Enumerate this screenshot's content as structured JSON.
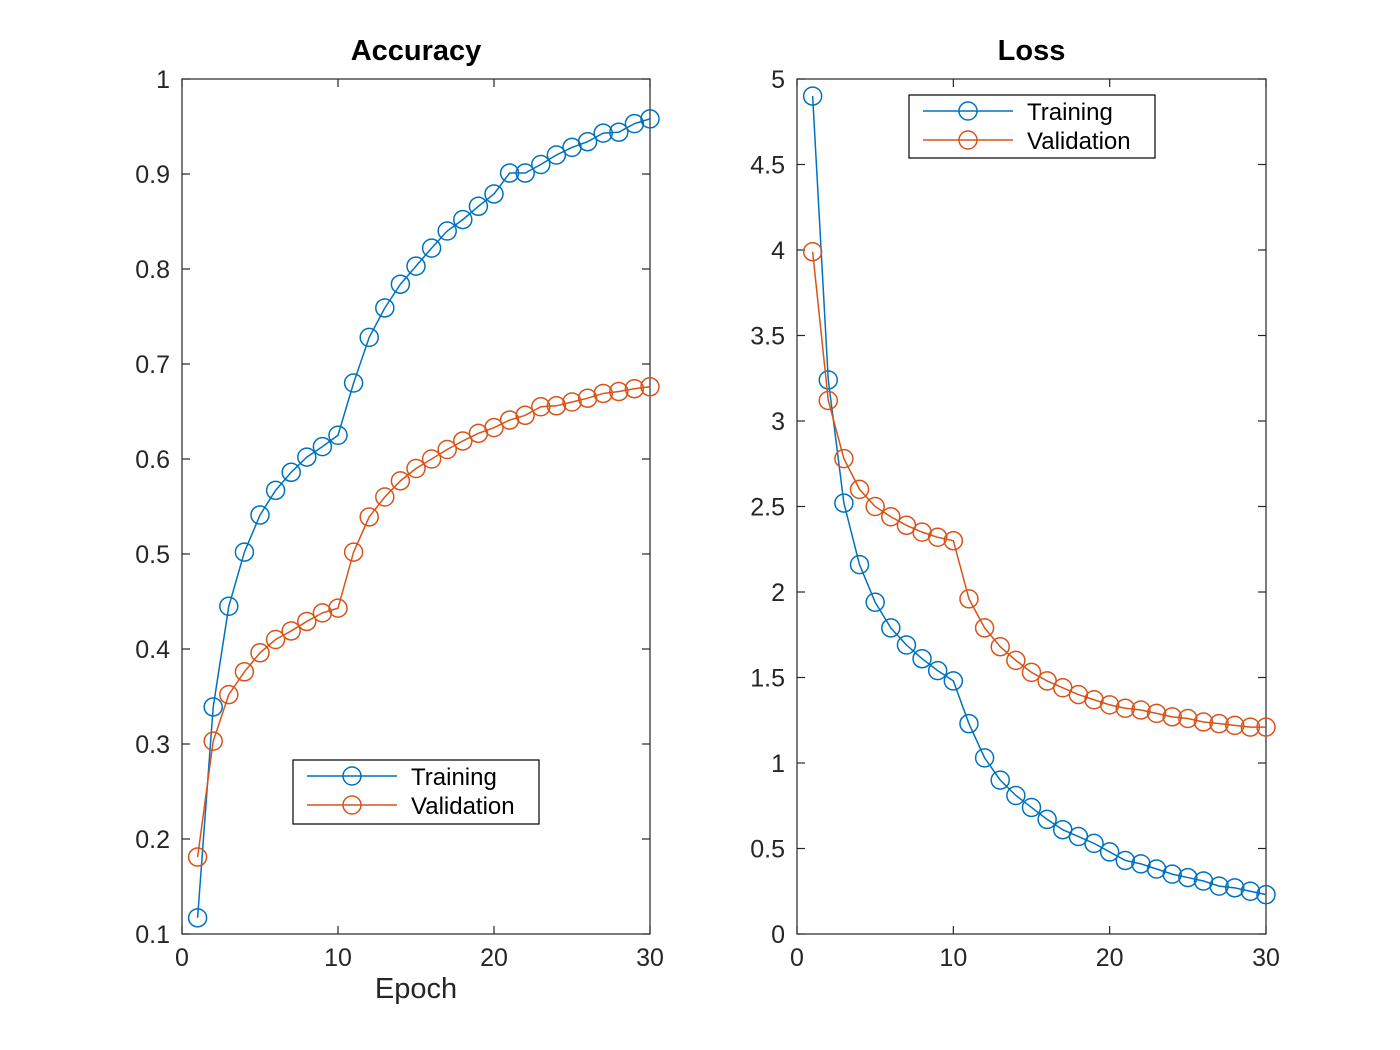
{
  "colors": {
    "training": "#0072bd",
    "validation": "#d95319",
    "axis": "#262626"
  },
  "chart_data": [
    {
      "type": "line",
      "title": "Accuracy",
      "xlabel": "Epoch",
      "ylabel": "",
      "xlim": [
        0,
        30
      ],
      "ylim": [
        0.1,
        1
      ],
      "xticks": [
        0,
        10,
        20,
        30
      ],
      "xtick_labels": [
        "0",
        "10",
        "20",
        "30"
      ],
      "yticks": [
        0.1,
        0.2,
        0.3,
        0.4,
        0.5,
        0.6,
        0.7,
        0.8,
        0.9,
        1
      ],
      "ytick_labels": [
        "0.1",
        "0.2",
        "0.3",
        "0.4",
        "0.5",
        "0.6",
        "0.7",
        "0.8",
        "0.9",
        "1"
      ],
      "legend_position": "lower-middle",
      "marker": "circle",
      "x": [
        1,
        2,
        3,
        4,
        5,
        6,
        7,
        8,
        9,
        10,
        11,
        12,
        13,
        14,
        15,
        16,
        17,
        18,
        19,
        20,
        21,
        22,
        23,
        24,
        25,
        26,
        27,
        28,
        29,
        30
      ],
      "series": [
        {
          "name": "Training",
          "values": [
            0.117,
            0.339,
            0.445,
            0.502,
            0.541,
            0.567,
            0.586,
            0.602,
            0.613,
            0.625,
            0.68,
            0.728,
            0.759,
            0.784,
            0.803,
            0.822,
            0.84,
            0.852,
            0.866,
            0.879,
            0.901,
            0.901,
            0.91,
            0.92,
            0.928,
            0.934,
            0.943,
            0.944,
            0.953,
            0.958
          ]
        },
        {
          "name": "Validation",
          "values": [
            0.181,
            0.303,
            0.352,
            0.376,
            0.396,
            0.41,
            0.419,
            0.429,
            0.438,
            0.443,
            0.502,
            0.539,
            0.56,
            0.577,
            0.59,
            0.6,
            0.61,
            0.619,
            0.627,
            0.633,
            0.641,
            0.646,
            0.655,
            0.656,
            0.66,
            0.664,
            0.669,
            0.671,
            0.674,
            0.676
          ]
        }
      ]
    },
    {
      "type": "line",
      "title": "Loss",
      "xlabel": "",
      "ylabel": "",
      "xlim": [
        0,
        30
      ],
      "ylim": [
        0,
        5
      ],
      "xticks": [
        0,
        10,
        20,
        30
      ],
      "xtick_labels": [
        "0",
        "10",
        "20",
        "30"
      ],
      "yticks": [
        0,
        0.5,
        1,
        1.5,
        2,
        2.5,
        3,
        3.5,
        4,
        4.5,
        5
      ],
      "ytick_labels": [
        "0",
        "0.5",
        "1",
        "1.5",
        "2",
        "2.5",
        "3",
        "3.5",
        "4",
        "4.5",
        "5"
      ],
      "legend_position": "top-middle",
      "marker": "circle",
      "x": [
        1,
        2,
        3,
        4,
        5,
        6,
        7,
        8,
        9,
        10,
        11,
        12,
        13,
        14,
        15,
        16,
        17,
        18,
        19,
        20,
        21,
        22,
        23,
        24,
        25,
        26,
        27,
        28,
        29,
        30
      ],
      "series": [
        {
          "name": "Training",
          "values": [
            4.9,
            3.24,
            2.52,
            2.16,
            1.94,
            1.79,
            1.69,
            1.61,
            1.54,
            1.48,
            1.23,
            1.03,
            0.9,
            0.81,
            0.74,
            0.67,
            0.61,
            0.57,
            0.53,
            0.48,
            0.43,
            0.41,
            0.38,
            0.35,
            0.33,
            0.31,
            0.28,
            0.27,
            0.25,
            0.23
          ]
        },
        {
          "name": "Validation",
          "values": [
            3.99,
            3.12,
            2.78,
            2.6,
            2.5,
            2.44,
            2.39,
            2.35,
            2.32,
            2.3,
            1.96,
            1.79,
            1.68,
            1.6,
            1.53,
            1.48,
            1.44,
            1.4,
            1.37,
            1.34,
            1.32,
            1.31,
            1.29,
            1.27,
            1.26,
            1.24,
            1.23,
            1.22,
            1.21,
            1.21
          ]
        }
      ]
    }
  ]
}
